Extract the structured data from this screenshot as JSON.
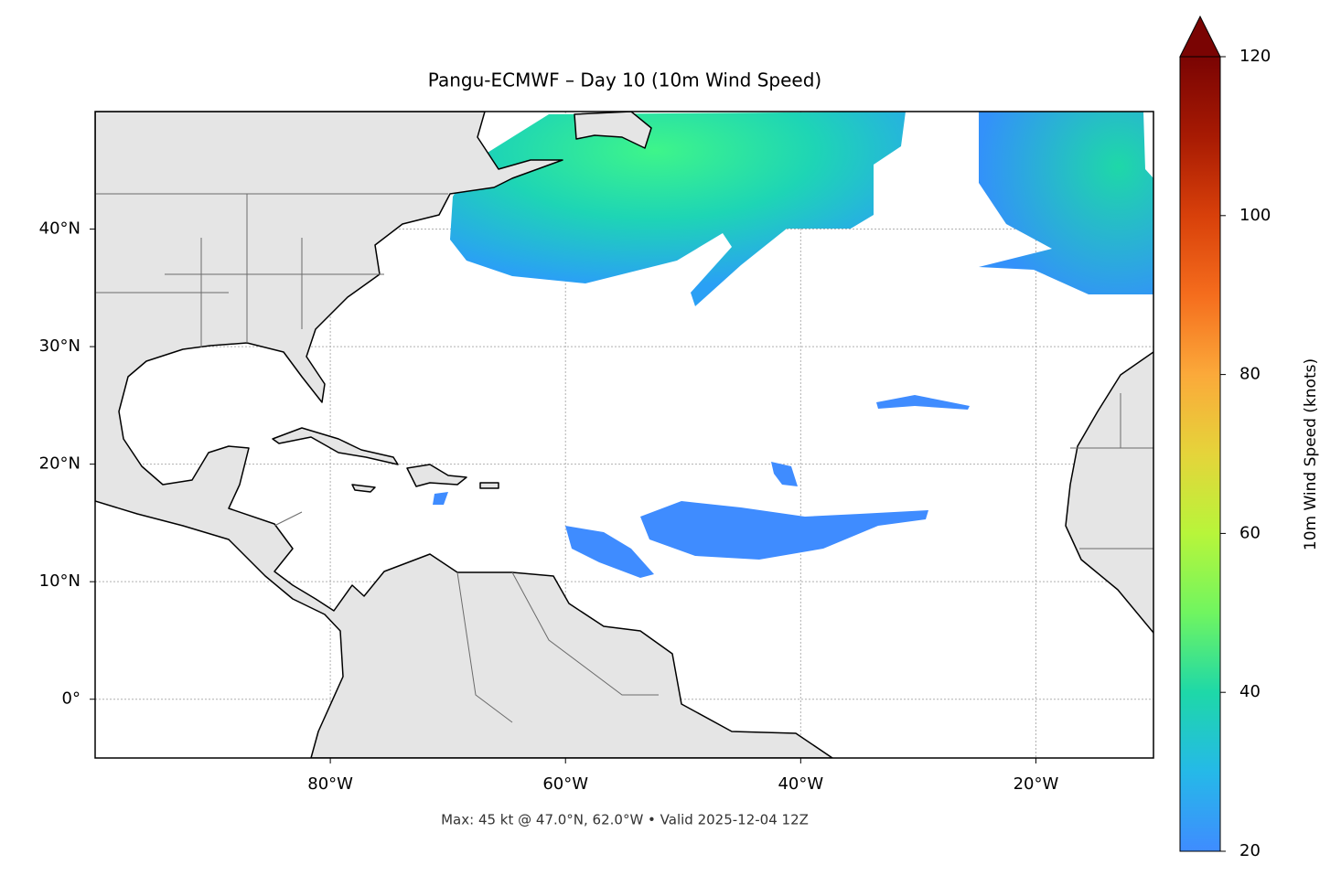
{
  "chart_data": {
    "type": "map",
    "title": "Pangu-ECMWF – Day 10 (10m Wind Speed)",
    "footer": "Max: 45 kt @ 47.0°N, 62.0°W • Valid 2025-12-04 12Z",
    "xlim": [
      -100,
      -10
    ],
    "ylim": [
      -5,
      50
    ],
    "xticks": [
      {
        "value": -80,
        "label": "80°W"
      },
      {
        "value": -60,
        "label": "60°W"
      },
      {
        "value": -40,
        "label": "40°W"
      },
      {
        "value": -20,
        "label": "20°W"
      }
    ],
    "yticks": [
      {
        "value": 0,
        "label": "0°"
      },
      {
        "value": 10,
        "label": "10°N"
      },
      {
        "value": 20,
        "label": "20°N"
      },
      {
        "value": 30,
        "label": "30°N"
      },
      {
        "value": 40,
        "label": "40°N"
      }
    ],
    "grid": true,
    "colorbar": {
      "label": "10m Wind Speed (knots)",
      "lim": [
        20,
        120
      ],
      "ticks": [
        20,
        40,
        60,
        80,
        100,
        120
      ]
    }
  }
}
